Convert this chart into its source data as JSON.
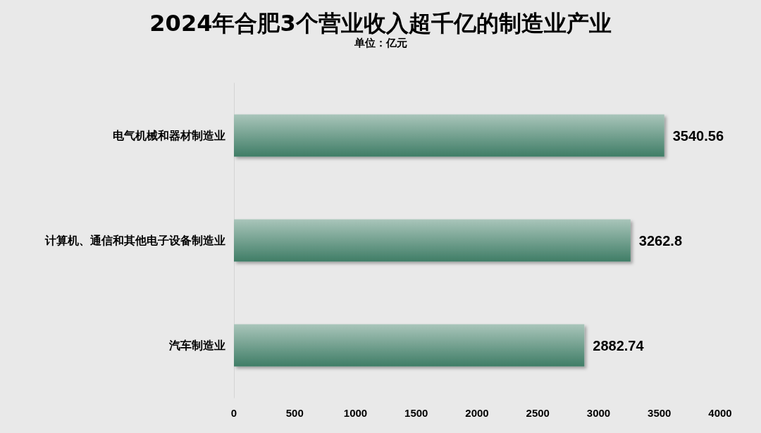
{
  "chart_data": {
    "type": "bar",
    "orientation": "horizontal",
    "title": "2024年合肥3个营业收入超千亿的制造业产业",
    "subtitle": "单位：亿元",
    "categories": [
      "电气机械和器材制造业",
      "计算机、通信和其他电子设备制造业",
      "汽车制造业"
    ],
    "values": [
      3540.56,
      3262.8,
      2882.74
    ],
    "color": "#3f7d66",
    "xlim": [
      0,
      4000
    ],
    "xticks": [
      0,
      500,
      1000,
      1500,
      2000,
      2500,
      3000,
      3500,
      4000
    ],
    "grid": false,
    "data_labels": true
  }
}
